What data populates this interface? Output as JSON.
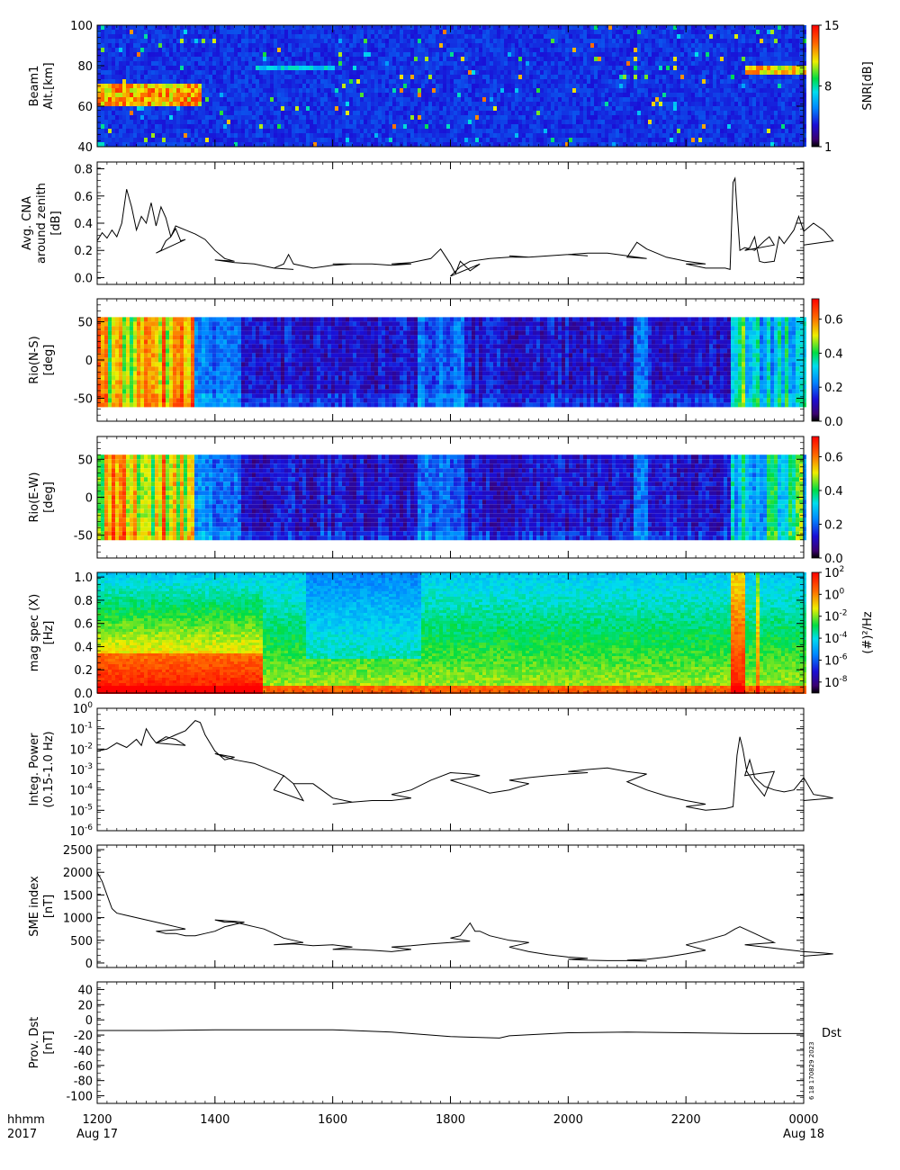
{
  "chart_data": [
    {
      "type": "heatmap",
      "panel": "beam1",
      "ylabel": [
        "Beam1",
        "Alt.[km]"
      ],
      "yticks": [
        "40",
        "60",
        "80",
        "100"
      ],
      "ylim": [
        40,
        100
      ],
      "colorbar": {
        "label": "SNR[dB]",
        "ticks": [
          "1",
          "8",
          "15"
        ],
        "range": [
          1,
          15
        ],
        "colormap": "rainbow"
      },
      "features": [
        {
          "x_range": [
            1200,
            1345
          ],
          "y_range": [
            62,
            72
          ],
          "level": 14
        },
        {
          "x_range": [
            1440,
            1600
          ],
          "y_range": [
            79,
            82
          ],
          "level": 8
        },
        {
          "x_range": [
            2300,
            2400
          ],
          "y_range": [
            76,
            80
          ],
          "level": 13
        }
      ]
    },
    {
      "type": "line",
      "panel": "cna",
      "ylabel": [
        "Avg. CNA",
        "around zenith",
        "[dB]"
      ],
      "yticks": [
        "0.0",
        "0.2",
        "0.4",
        "0.6",
        "0.8"
      ],
      "ylim": [
        -0.05,
        0.85
      ],
      "points": [
        [
          1200,
          0.27
        ],
        [
          1205,
          0.33
        ],
        [
          1210,
          0.29
        ],
        [
          1215,
          0.35
        ],
        [
          1220,
          0.3
        ],
        [
          1225,
          0.4
        ],
        [
          1230,
          0.65
        ],
        [
          1235,
          0.52
        ],
        [
          1240,
          0.35
        ],
        [
          1245,
          0.45
        ],
        [
          1250,
          0.4
        ],
        [
          1255,
          0.55
        ],
        [
          1260,
          0.38
        ],
        [
          1265,
          0.52
        ],
        [
          1270,
          0.44
        ],
        [
          1275,
          0.3
        ],
        [
          1280,
          0.36
        ],
        [
          1285,
          0.27
        ],
        [
          1290,
          0.28
        ],
        [
          1300,
          0.18
        ],
        [
          1305,
          0.2
        ],
        [
          1310,
          0.27
        ],
        [
          1315,
          0.3
        ],
        [
          1320,
          0.38
        ],
        [
          1330,
          0.35
        ],
        [
          1340,
          0.32
        ],
        [
          1350,
          0.28
        ],
        [
          1360,
          0.2
        ],
        [
          1370,
          0.14
        ],
        [
          1380,
          0.12
        ],
        [
          1400,
          0.13
        ],
        [
          1420,
          0.11
        ],
        [
          1440,
          0.1
        ],
        [
          1460,
          0.07
        ],
        [
          1480,
          0.06
        ],
        [
          1500,
          0.07
        ],
        [
          1510,
          0.1
        ],
        [
          1515,
          0.17
        ],
        [
          1520,
          0.1
        ],
        [
          1540,
          0.07
        ],
        [
          1560,
          0.09
        ],
        [
          1580,
          0.1
        ],
        [
          1600,
          0.1
        ],
        [
          1620,
          0.1
        ],
        [
          1640,
          0.1
        ],
        [
          1660,
          0.09
        ],
        [
          1680,
          0.1
        ],
        [
          1700,
          0.1
        ],
        [
          1720,
          0.11
        ],
        [
          1740,
          0.14
        ],
        [
          1750,
          0.21
        ],
        [
          1760,
          0.1
        ],
        [
          1765,
          0.03
        ],
        [
          1770,
          0.12
        ],
        [
          1780,
          0.05
        ],
        [
          1790,
          0.1
        ],
        [
          1800,
          0.01
        ],
        [
          1810,
          0.08
        ],
        [
          1820,
          0.12
        ],
        [
          1840,
          0.14
        ],
        [
          1860,
          0.15
        ],
        [
          1880,
          0.15
        ],
        [
          1900,
          0.16
        ],
        [
          1920,
          0.15
        ],
        [
          1940,
          0.16
        ],
        [
          1960,
          0.17
        ],
        [
          1980,
          0.16
        ],
        [
          2000,
          0.17
        ],
        [
          2020,
          0.18
        ],
        [
          2040,
          0.18
        ],
        [
          2060,
          0.16
        ],
        [
          2080,
          0.14
        ],
        [
          2100,
          0.15
        ],
        [
          2110,
          0.26
        ],
        [
          2120,
          0.21
        ],
        [
          2130,
          0.18
        ],
        [
          2140,
          0.15
        ],
        [
          2160,
          0.12
        ],
        [
          2180,
          0.1
        ],
        [
          2200,
          0.1
        ],
        [
          2220,
          0.07
        ],
        [
          2240,
          0.07
        ],
        [
          2245,
          0.06
        ],
        [
          2248,
          0.7
        ],
        [
          2250,
          0.73
        ],
        [
          2252,
          0.5
        ],
        [
          2255,
          0.2
        ],
        [
          2260,
          0.22
        ],
        [
          2270,
          0.2
        ],
        [
          2280,
          0.27
        ],
        [
          2285,
          0.3
        ],
        [
          2290,
          0.24
        ],
        [
          2300,
          0.2
        ],
        [
          2305,
          0.22
        ],
        [
          2310,
          0.3
        ],
        [
          2315,
          0.12
        ],
        [
          2320,
          0.11
        ],
        [
          2330,
          0.12
        ],
        [
          2335,
          0.3
        ],
        [
          2340,
          0.25
        ],
        [
          2350,
          0.35
        ],
        [
          2355,
          0.45
        ],
        [
          2360,
          0.34
        ],
        [
          2370,
          0.4
        ],
        [
          2380,
          0.35
        ],
        [
          2390,
          0.27
        ],
        [
          2400,
          0.24
        ]
      ]
    },
    {
      "type": "heatmap",
      "panel": "rio_ns",
      "ylabel": [
        "Rio(N-S)",
        "[deg]"
      ],
      "yticks": [
        "-50",
        "0",
        "50"
      ],
      "ylim": [
        -80,
        80
      ],
      "colorbar": {
        "ticks": [
          "0.0",
          "0.2",
          "0.4",
          "0.6"
        ],
        "range": [
          0,
          0.72
        ],
        "colormap": "rainbow"
      }
    },
    {
      "type": "heatmap",
      "panel": "rio_ew",
      "ylabel": [
        "Rio(E-W)",
        "[deg]"
      ],
      "yticks": [
        "-50",
        "0",
        "50"
      ],
      "ylim": [
        -80,
        80
      ],
      "colorbar": {
        "ticks": [
          "0.0",
          "0.2",
          "0.4",
          "0.6"
        ],
        "range": [
          0,
          0.72
        ],
        "colormap": "rainbow"
      }
    },
    {
      "type": "heatmap",
      "panel": "mag_spec",
      "ylabel": [
        "mag spec (X)",
        "[Hz]"
      ],
      "yticks": [
        "0.0",
        "0.2",
        "0.4",
        "0.6",
        "0.8",
        "1.0"
      ],
      "ylim": [
        0,
        1.04
      ],
      "colorbar": {
        "label": "(#)²/Hz",
        "ticks": [
          "2",
          "0",
          "-2",
          "-4",
          "-6",
          "-8"
        ],
        "tick_base": "10",
        "range": [
          -9,
          2
        ],
        "scale": "log",
        "colormap": "rainbow"
      }
    },
    {
      "type": "line",
      "panel": "integ_power",
      "ylabel": [
        "Integ. Power",
        "(0.15-1.0 Hz)"
      ],
      "yticks": [
        "0",
        "-1",
        "-2",
        "-3",
        "-4",
        "-5",
        "-6"
      ],
      "tick_base": "10",
      "yscale": "log",
      "ylim": [
        1e-06,
        1
      ],
      "points": [
        [
          1200,
          0.008
        ],
        [
          1210,
          0.01
        ],
        [
          1220,
          0.02
        ],
        [
          1230,
          0.012
        ],
        [
          1240,
          0.03
        ],
        [
          1245,
          0.015
        ],
        [
          1250,
          0.1
        ],
        [
          1255,
          0.04
        ],
        [
          1260,
          0.02
        ],
        [
          1270,
          0.04
        ],
        [
          1280,
          0.03
        ],
        [
          1290,
          0.015
        ],
        [
          1300,
          0.02
        ],
        [
          1310,
          0.03
        ],
        [
          1320,
          0.05
        ],
        [
          1330,
          0.08
        ],
        [
          1340,
          0.25
        ],
        [
          1345,
          0.2
        ],
        [
          1350,
          0.05
        ],
        [
          1360,
          0.008
        ],
        [
          1370,
          0.003
        ],
        [
          1380,
          0.004
        ],
        [
          1400,
          0.006
        ],
        [
          1420,
          0.003
        ],
        [
          1440,
          0.002
        ],
        [
          1460,
          0.0008
        ],
        [
          1470,
          0.0005
        ],
        [
          1480,
          0.0002
        ],
        [
          1490,
          3e-05
        ],
        [
          1500,
          0.0001
        ],
        [
          1510,
          0.0005
        ],
        [
          1520,
          0.0002
        ],
        [
          1540,
          0.0002
        ],
        [
          1560,
          4e-05
        ],
        [
          1580,
          2.5e-05
        ],
        [
          1600,
          2e-05
        ],
        [
          1620,
          2.5e-05
        ],
        [
          1640,
          3e-05
        ],
        [
          1660,
          3e-05
        ],
        [
          1680,
          4e-05
        ],
        [
          1700,
          6e-05
        ],
        [
          1720,
          0.0001
        ],
        [
          1740,
          0.0003
        ],
        [
          1760,
          0.0007
        ],
        [
          1780,
          0.0006
        ],
        [
          1790,
          0.0005
        ],
        [
          1800,
          0.0003
        ],
        [
          1820,
          0.00015
        ],
        [
          1840,
          7e-05
        ],
        [
          1860,
          0.0001
        ],
        [
          1880,
          0.0002
        ],
        [
          1900,
          0.0003
        ],
        [
          1920,
          0.0004
        ],
        [
          1940,
          0.0005
        ],
        [
          1960,
          0.0006
        ],
        [
          1980,
          0.0007
        ],
        [
          2000,
          0.0008
        ],
        [
          2020,
          0.001
        ],
        [
          2040,
          0.0012
        ],
        [
          2060,
          0.0008
        ],
        [
          2080,
          0.0006
        ],
        [
          2100,
          0.00025
        ],
        [
          2120,
          0.0001
        ],
        [
          2140,
          5e-05
        ],
        [
          2160,
          3e-05
        ],
        [
          2180,
          2e-05
        ],
        [
          2200,
          1.5e-05
        ],
        [
          2220,
          1e-05
        ],
        [
          2240,
          1.2e-05
        ],
        [
          2248,
          1.5e-05
        ],
        [
          2252,
          0.005
        ],
        [
          2255,
          0.04
        ],
        [
          2258,
          0.01
        ],
        [
          2262,
          0.0008
        ],
        [
          2270,
          0.0002
        ],
        [
          2280,
          5e-05
        ],
        [
          2290,
          0.0008
        ],
        [
          2300,
          0.0005
        ],
        [
          2305,
          0.003
        ],
        [
          2310,
          0.0004
        ],
        [
          2320,
          0.00015
        ],
        [
          2330,
          0.0001
        ],
        [
          2340,
          8e-05
        ],
        [
          2350,
          0.0001
        ],
        [
          2360,
          0.0004
        ],
        [
          2370,
          6e-05
        ],
        [
          2380,
          5e-05
        ],
        [
          2390,
          4e-05
        ],
        [
          2400,
          3e-05
        ]
      ]
    },
    {
      "type": "line",
      "panel": "sme",
      "ylabel": [
        "SME index",
        "[nT]"
      ],
      "yticks": [
        "0",
        "500",
        "1000",
        "1500",
        "2000",
        "2500"
      ],
      "ylim": [
        -100,
        2600
      ],
      "points": [
        [
          1200,
          2000
        ],
        [
          1205,
          1800
        ],
        [
          1210,
          1500
        ],
        [
          1215,
          1200
        ],
        [
          1220,
          1100
        ],
        [
          1230,
          1050
        ],
        [
          1240,
          1000
        ],
        [
          1250,
          950
        ],
        [
          1260,
          900
        ],
        [
          1270,
          850
        ],
        [
          1280,
          800
        ],
        [
          1290,
          750
        ],
        [
          1300,
          700
        ],
        [
          1310,
          650
        ],
        [
          1320,
          650
        ],
        [
          1330,
          600
        ],
        [
          1340,
          600
        ],
        [
          1350,
          650
        ],
        [
          1360,
          700
        ],
        [
          1370,
          800
        ],
        [
          1380,
          850
        ],
        [
          1390,
          900
        ],
        [
          1400,
          950
        ],
        [
          1410,
          900
        ],
        [
          1420,
          900
        ],
        [
          1430,
          850
        ],
        [
          1440,
          800
        ],
        [
          1450,
          750
        ],
        [
          1460,
          650
        ],
        [
          1470,
          550
        ],
        [
          1480,
          500
        ],
        [
          1490,
          450
        ],
        [
          1500,
          400
        ],
        [
          1520,
          420
        ],
        [
          1540,
          380
        ],
        [
          1560,
          400
        ],
        [
          1580,
          350
        ],
        [
          1600,
          300
        ],
        [
          1620,
          300
        ],
        [
          1640,
          280
        ],
        [
          1660,
          250
        ],
        [
          1680,
          300
        ],
        [
          1700,
          350
        ],
        [
          1720,
          380
        ],
        [
          1740,
          420
        ],
        [
          1760,
          450
        ],
        [
          1780,
          480
        ],
        [
          1800,
          550
        ],
        [
          1810,
          600
        ],
        [
          1820,
          880
        ],
        [
          1825,
          700
        ],
        [
          1830,
          700
        ],
        [
          1840,
          600
        ],
        [
          1860,
          500
        ],
        [
          1880,
          450
        ],
        [
          1900,
          350
        ],
        [
          1920,
          250
        ],
        [
          1940,
          180
        ],
        [
          1960,
          130
        ],
        [
          1980,
          100
        ],
        [
          2000,
          80
        ],
        [
          2020,
          60
        ],
        [
          2040,
          50
        ],
        [
          2060,
          50
        ],
        [
          2080,
          40
        ],
        [
          2100,
          60
        ],
        [
          2120,
          80
        ],
        [
          2140,
          130
        ],
        [
          2160,
          200
        ],
        [
          2180,
          280
        ],
        [
          2200,
          400
        ],
        [
          2220,
          500
        ],
        [
          2240,
          620
        ],
        [
          2250,
          750
        ],
        [
          2255,
          800
        ],
        [
          2260,
          750
        ],
        [
          2270,
          650
        ],
        [
          2280,
          550
        ],
        [
          2290,
          450
        ],
        [
          2300,
          400
        ],
        [
          2320,
          350
        ],
        [
          2340,
          300
        ],
        [
          2360,
          250
        ],
        [
          2380,
          220
        ],
        [
          2390,
          200
        ],
        [
          2400,
          150
        ]
      ]
    },
    {
      "type": "line",
      "panel": "dst",
      "ylabel": [
        "Prov. Dst",
        "[nT]"
      ],
      "yticks": [
        "-100",
        "-80",
        "-60",
        "-40",
        "-20",
        "0",
        "20",
        "40"
      ],
      "ylim": [
        -110,
        50
      ],
      "side_label": "Dst",
      "stamp": "6 18 170829 2023",
      "points": [
        [
          1200,
          -14
        ],
        [
          1300,
          -14
        ],
        [
          1400,
          -13
        ],
        [
          1500,
          -13
        ],
        [
          1600,
          -13
        ],
        [
          1700,
          -16
        ],
        [
          1800,
          -22
        ],
        [
          1850,
          -24
        ],
        [
          1900,
          -21
        ],
        [
          2000,
          -17
        ],
        [
          2100,
          -16
        ],
        [
          2200,
          -17
        ],
        [
          2300,
          -18
        ],
        [
          2400,
          -18
        ]
      ]
    }
  ],
  "xaxis": {
    "ticks": [
      "1200",
      "1400",
      "1600",
      "1800",
      "2000",
      "2200",
      "0000"
    ],
    "xlim": [
      1200,
      2400
    ],
    "left_caption": [
      "hhmm",
      "2017"
    ],
    "dates": [
      {
        "at": 1200,
        "text": "Aug 17"
      },
      {
        "at": 2400,
        "text": "Aug 18"
      }
    ]
  }
}
